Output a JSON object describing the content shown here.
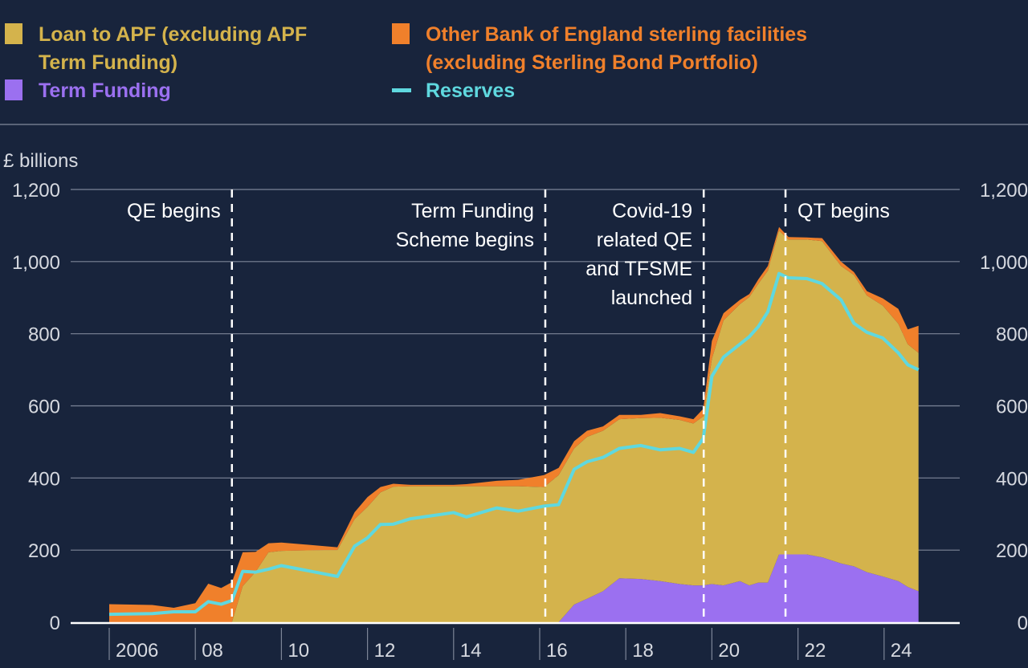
{
  "legend": [
    {
      "lines": [
        "Loan to APF (excluding APF",
        "Term Funding)"
      ],
      "color": "#d4b34c",
      "marker": "square"
    },
    {
      "lines": [
        "Term Funding"
      ],
      "color": "#9b70f0",
      "marker": "square"
    },
    {
      "lines": [
        "Other Bank of England sterling facilities",
        "(excluding Sterling Bond Portfolio)"
      ],
      "color": "#f0802b",
      "marker": "square"
    },
    {
      "lines": [
        "Reserves"
      ],
      "color": "#5fd8df",
      "marker": "line"
    }
  ],
  "chart_data": {
    "type": "area",
    "stacked": true,
    "ylabel": "£ billions",
    "ylim": [
      0,
      1200
    ],
    "yticks": [
      0,
      200,
      400,
      600,
      800,
      1000,
      1200
    ],
    "ytick_labels": [
      "0",
      "200",
      "400",
      "600",
      "800",
      "1,000",
      "1,200"
    ],
    "xlim": [
      2006,
      2025
    ],
    "xtick_labels": [
      {
        "year": 2006,
        "label": "2006"
      },
      {
        "year": 2008,
        "label": "08"
      },
      {
        "year": 2010,
        "label": "10"
      },
      {
        "year": 2012,
        "label": "12"
      },
      {
        "year": 2014,
        "label": "14"
      },
      {
        "year": 2016,
        "label": "16"
      },
      {
        "year": 2018,
        "label": "18"
      },
      {
        "year": 2020,
        "label": "20"
      },
      {
        "year": 2022,
        "label": "22"
      },
      {
        "year": 2024,
        "label": "24"
      }
    ],
    "grid": true,
    "axes": "left and right",
    "x": [
      2006.0,
      2007.0,
      2007.5,
      2008.0,
      2008.3,
      2008.6,
      2008.85,
      2009.1,
      2009.4,
      2009.7,
      2010.0,
      2011.0,
      2011.3,
      2011.7,
      2012.0,
      2012.3,
      2012.6,
      2013.0,
      2014.0,
      2014.3,
      2015.0,
      2015.5,
      2016.1,
      2016.44,
      2016.8,
      2017.1,
      2017.47,
      2017.85,
      2018.35,
      2018.8,
      2019.25,
      2019.57,
      2019.8,
      2020.0,
      2020.27,
      2020.65,
      2020.87,
      2021.08,
      2021.3,
      2021.56,
      2021.78,
      2022.2,
      2022.56,
      2023.0,
      2023.3,
      2023.6,
      2023.97,
      2024.33,
      2024.55,
      2024.8
    ],
    "series": [
      {
        "name": "Term Funding",
        "color": "#9b70f0",
        "kind": "area",
        "values": [
          0,
          0,
          0,
          0,
          0,
          0,
          0,
          0,
          0,
          0,
          0,
          0,
          0,
          0,
          0,
          0,
          0,
          0,
          0,
          0,
          0,
          0,
          0,
          0,
          49,
          65,
          86,
          122,
          120,
          114,
          106,
          102,
          102,
          106,
          102,
          114,
          102,
          110,
          110,
          188,
          188,
          188,
          180,
          163,
          155,
          139,
          127,
          114,
          98,
          86
        ]
      },
      {
        "name": "Loan to APF (excluding APF Term Funding)",
        "color": "#d4b34c",
        "kind": "area",
        "values": [
          0,
          0,
          0,
          0,
          0,
          0,
          0,
          100,
          140,
          194,
          198,
          200,
          200,
          286,
          320,
          360,
          376,
          377,
          377,
          377,
          377,
          377,
          375,
          408,
          433,
          449,
          445,
          441,
          446,
          453,
          455,
          449,
          469,
          625,
          735,
          768,
          800,
          829,
          865,
          898,
          873,
          873,
          877,
          825,
          808,
          767,
          751,
          714,
          673,
          661
        ]
      },
      {
        "name": "Other Bank of England sterling facilities (excluding Sterling Bond Portfolio)",
        "color": "#f0802b",
        "kind": "area",
        "values": [
          50,
          48,
          40,
          53,
          107,
          95,
          111,
          94,
          55,
          25,
          23,
          11,
          8,
          19,
          27,
          15,
          8,
          4,
          4,
          6,
          15,
          18,
          33,
          20,
          20,
          17,
          12,
          12,
          9,
          13,
          10,
          12,
          21,
          49,
          20,
          12,
          8,
          12,
          13,
          10,
          7,
          6,
          8,
          12,
          8,
          12,
          20,
          41,
          41,
          75
        ]
      },
      {
        "name": "Reserves",
        "color": "#5fd8df",
        "kind": "line",
        "values": [
          22,
          24,
          29,
          29,
          57,
          50,
          60,
          141,
          139,
          147,
          157,
          134,
          127,
          211,
          234,
          271,
          272,
          287,
          304,
          292,
          317,
          308,
          322,
          326,
          424,
          445,
          457,
          482,
          490,
          478,
          482,
          471,
          510,
          682,
          735,
          771,
          792,
          820,
          861,
          967,
          955,
          953,
          939,
          894,
          829,
          804,
          788,
          747,
          714,
          700
        ]
      }
    ],
    "annotations": [
      {
        "year": 2008.85,
        "lines": [
          "QE begins"
        ],
        "side": "left"
      },
      {
        "year": 2016.13,
        "lines": [
          "Term Funding",
          "Scheme begins"
        ],
        "side": "left"
      },
      {
        "year": 2019.81,
        "lines": [
          "Covid-19",
          "related QE",
          "and TFSME",
          "launched"
        ],
        "side": "left"
      },
      {
        "year": 2021.71,
        "lines": [
          "QT begins"
        ],
        "side": "right"
      }
    ]
  }
}
